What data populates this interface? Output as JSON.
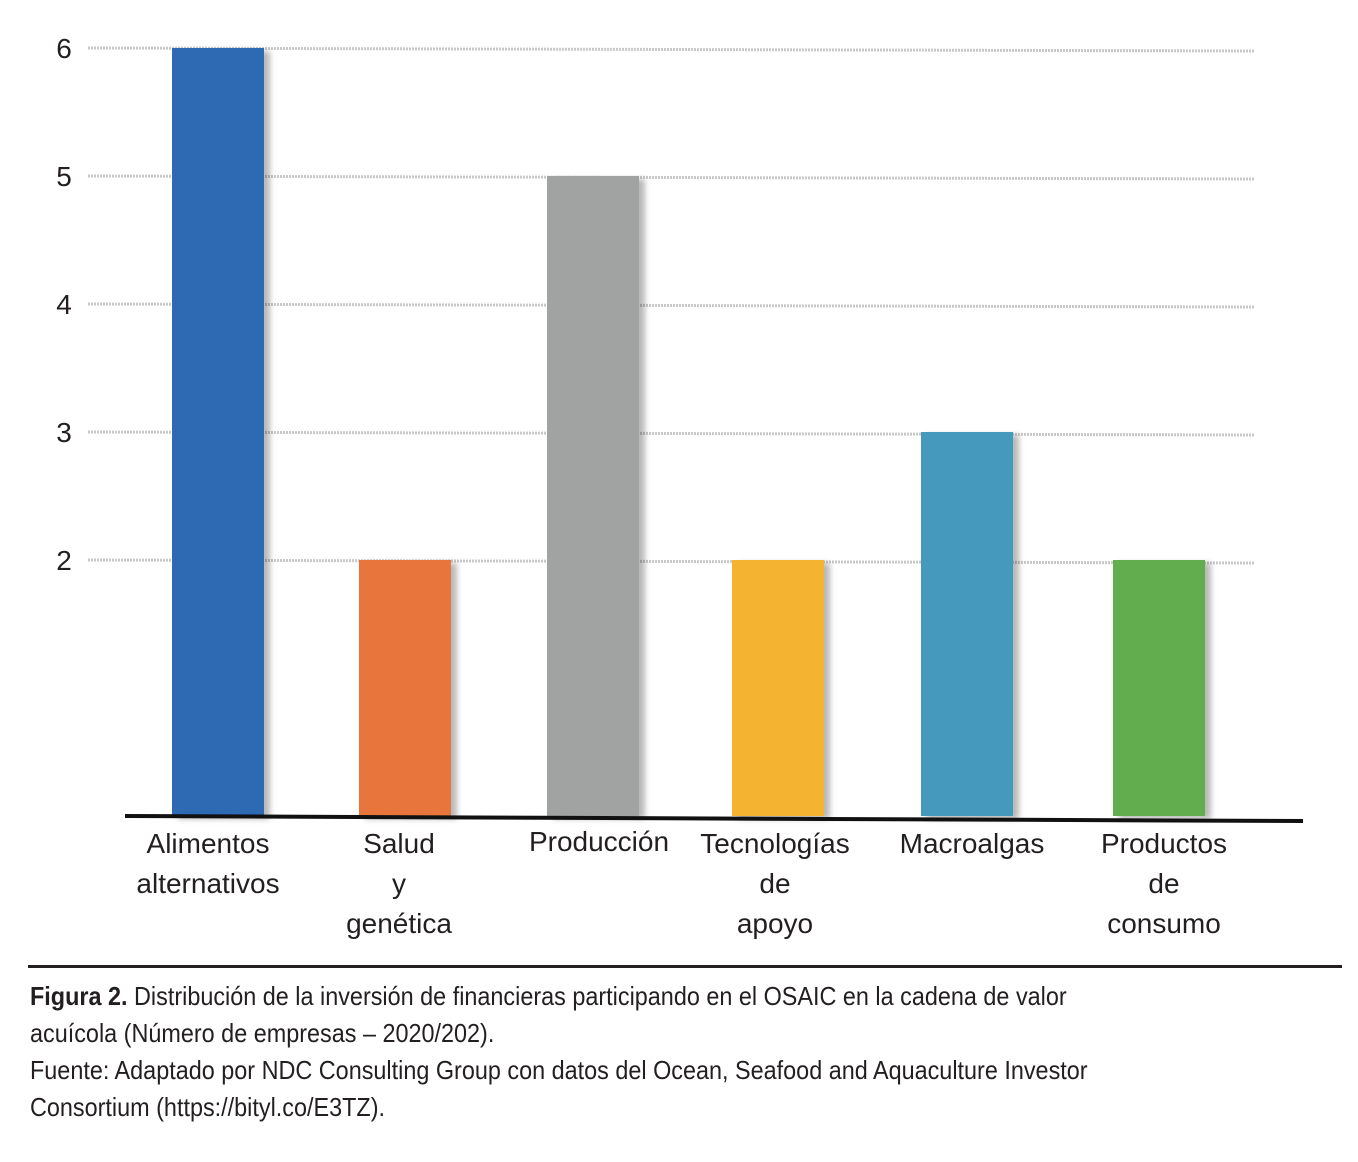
{
  "chart_data": {
    "type": "bar",
    "categories": [
      [
        "Alimentos",
        "alternativos"
      ],
      [
        "Salud",
        "y",
        "genética"
      ],
      [
        "Producción"
      ],
      [
        "Tecnologías",
        "de",
        "apoyo"
      ],
      [
        "Macroalgas"
      ],
      [
        "Productos",
        "de",
        "consumo"
      ]
    ],
    "values": [
      6,
      2,
      5,
      2,
      3,
      2
    ],
    "colors": [
      "#2e69b3",
      "#e8743b",
      "#a0a3a2",
      "#f4b433",
      "#4599bc",
      "#62ae4f"
    ],
    "yticks": [
      2,
      3,
      4,
      5,
      6
    ],
    "ylim_top": 6,
    "grid": true,
    "legend": "none"
  },
  "caption": {
    "figure_label": "Figura 2.",
    "line1": " Distribución de la inversión de financieras participando en el OSAIC en la cadena de valor",
    "line2": "acuícola (Número de empresas – 2020/202).",
    "source1": "Fuente: Adaptado por NDC Consulting Group con datos del Ocean, Seafood and Aquaculture Investor",
    "source2": "Consortium (https://bityl.co/E3TZ)."
  }
}
